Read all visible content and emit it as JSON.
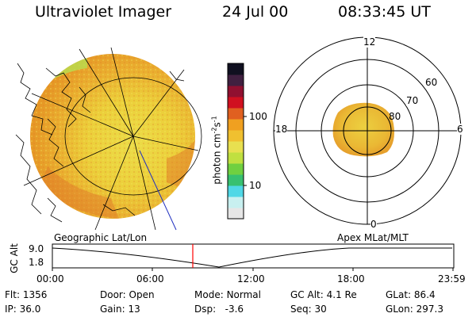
{
  "header": {
    "title": "Ultraviolet Imager",
    "date": "24 Jul 00",
    "time": "08:33:45 UT"
  },
  "colorbar": {
    "unit": "photon cm",
    "unit_exp1": "-2",
    "unit_mid": "s",
    "unit_exp2": "-1",
    "ticks": [
      "100",
      "10"
    ],
    "colors": [
      "#e6e6e6",
      "#c8f0f0",
      "#50d8e6",
      "#38c070",
      "#70d040",
      "#c0e040",
      "#e8e050",
      "#f0c030",
      "#f0a020",
      "#e06020",
      "#d01020",
      "#901030",
      "#402040",
      "#101020"
    ]
  },
  "polar": {
    "mlt_labels": [
      "12",
      "18",
      "6",
      "0"
    ],
    "mlat_labels": [
      "60",
      "70",
      "80"
    ]
  },
  "panels": {
    "left_label": "Geographic Lat/Lon",
    "right_label": "Apex MLat/MLT"
  },
  "altitude_plot": {
    "ylabel": "GC Alt",
    "yticks": [
      "9.0",
      "1.8"
    ],
    "xticks": [
      "00:00",
      "06:00",
      "12:00",
      "18:00",
      "23:59"
    ],
    "current_time_marker": "08:33:45",
    "marker_color": "#ff0000"
  },
  "info": {
    "flt_label": "Flt:",
    "flt_value": "1356",
    "ip_label": "IP:",
    "ip_value": "36.0",
    "door_label": "Door:",
    "door_value": "Open",
    "gain_label": "Gain:",
    "gain_value": "13",
    "mode_label": "Mode:",
    "mode_value": "Normal",
    "dsp_label": "Dsp:",
    "dsp_value": "-3.6",
    "gcalt_label": "GC Alt:",
    "gcalt_value": "4.1 Re",
    "seq_label": "Seq:",
    "seq_value": "30",
    "glat_label": "GLat:",
    "glat_value": "86.4",
    "glon_label": "GLon:",
    "glon_value": "297.3"
  }
}
